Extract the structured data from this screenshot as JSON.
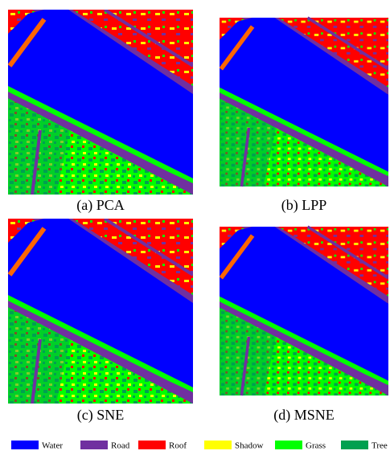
{
  "panels": [
    {
      "caption": "(a) PCA"
    },
    {
      "caption": "(b) LPP"
    },
    {
      "caption": "(c) SNE"
    },
    {
      "caption": "(d) MSNE"
    }
  ],
  "legend": [
    {
      "label": "Water",
      "color": "#0000ff"
    },
    {
      "label": "Road",
      "color": "#7030a0"
    },
    {
      "label": "Roof",
      "color": "#ff0000"
    },
    {
      "label": "Shadow",
      "color": "#ffff00"
    },
    {
      "label": "Grass",
      "color": "#00ff00"
    },
    {
      "label": "Tree",
      "color": "#00a050"
    }
  ]
}
